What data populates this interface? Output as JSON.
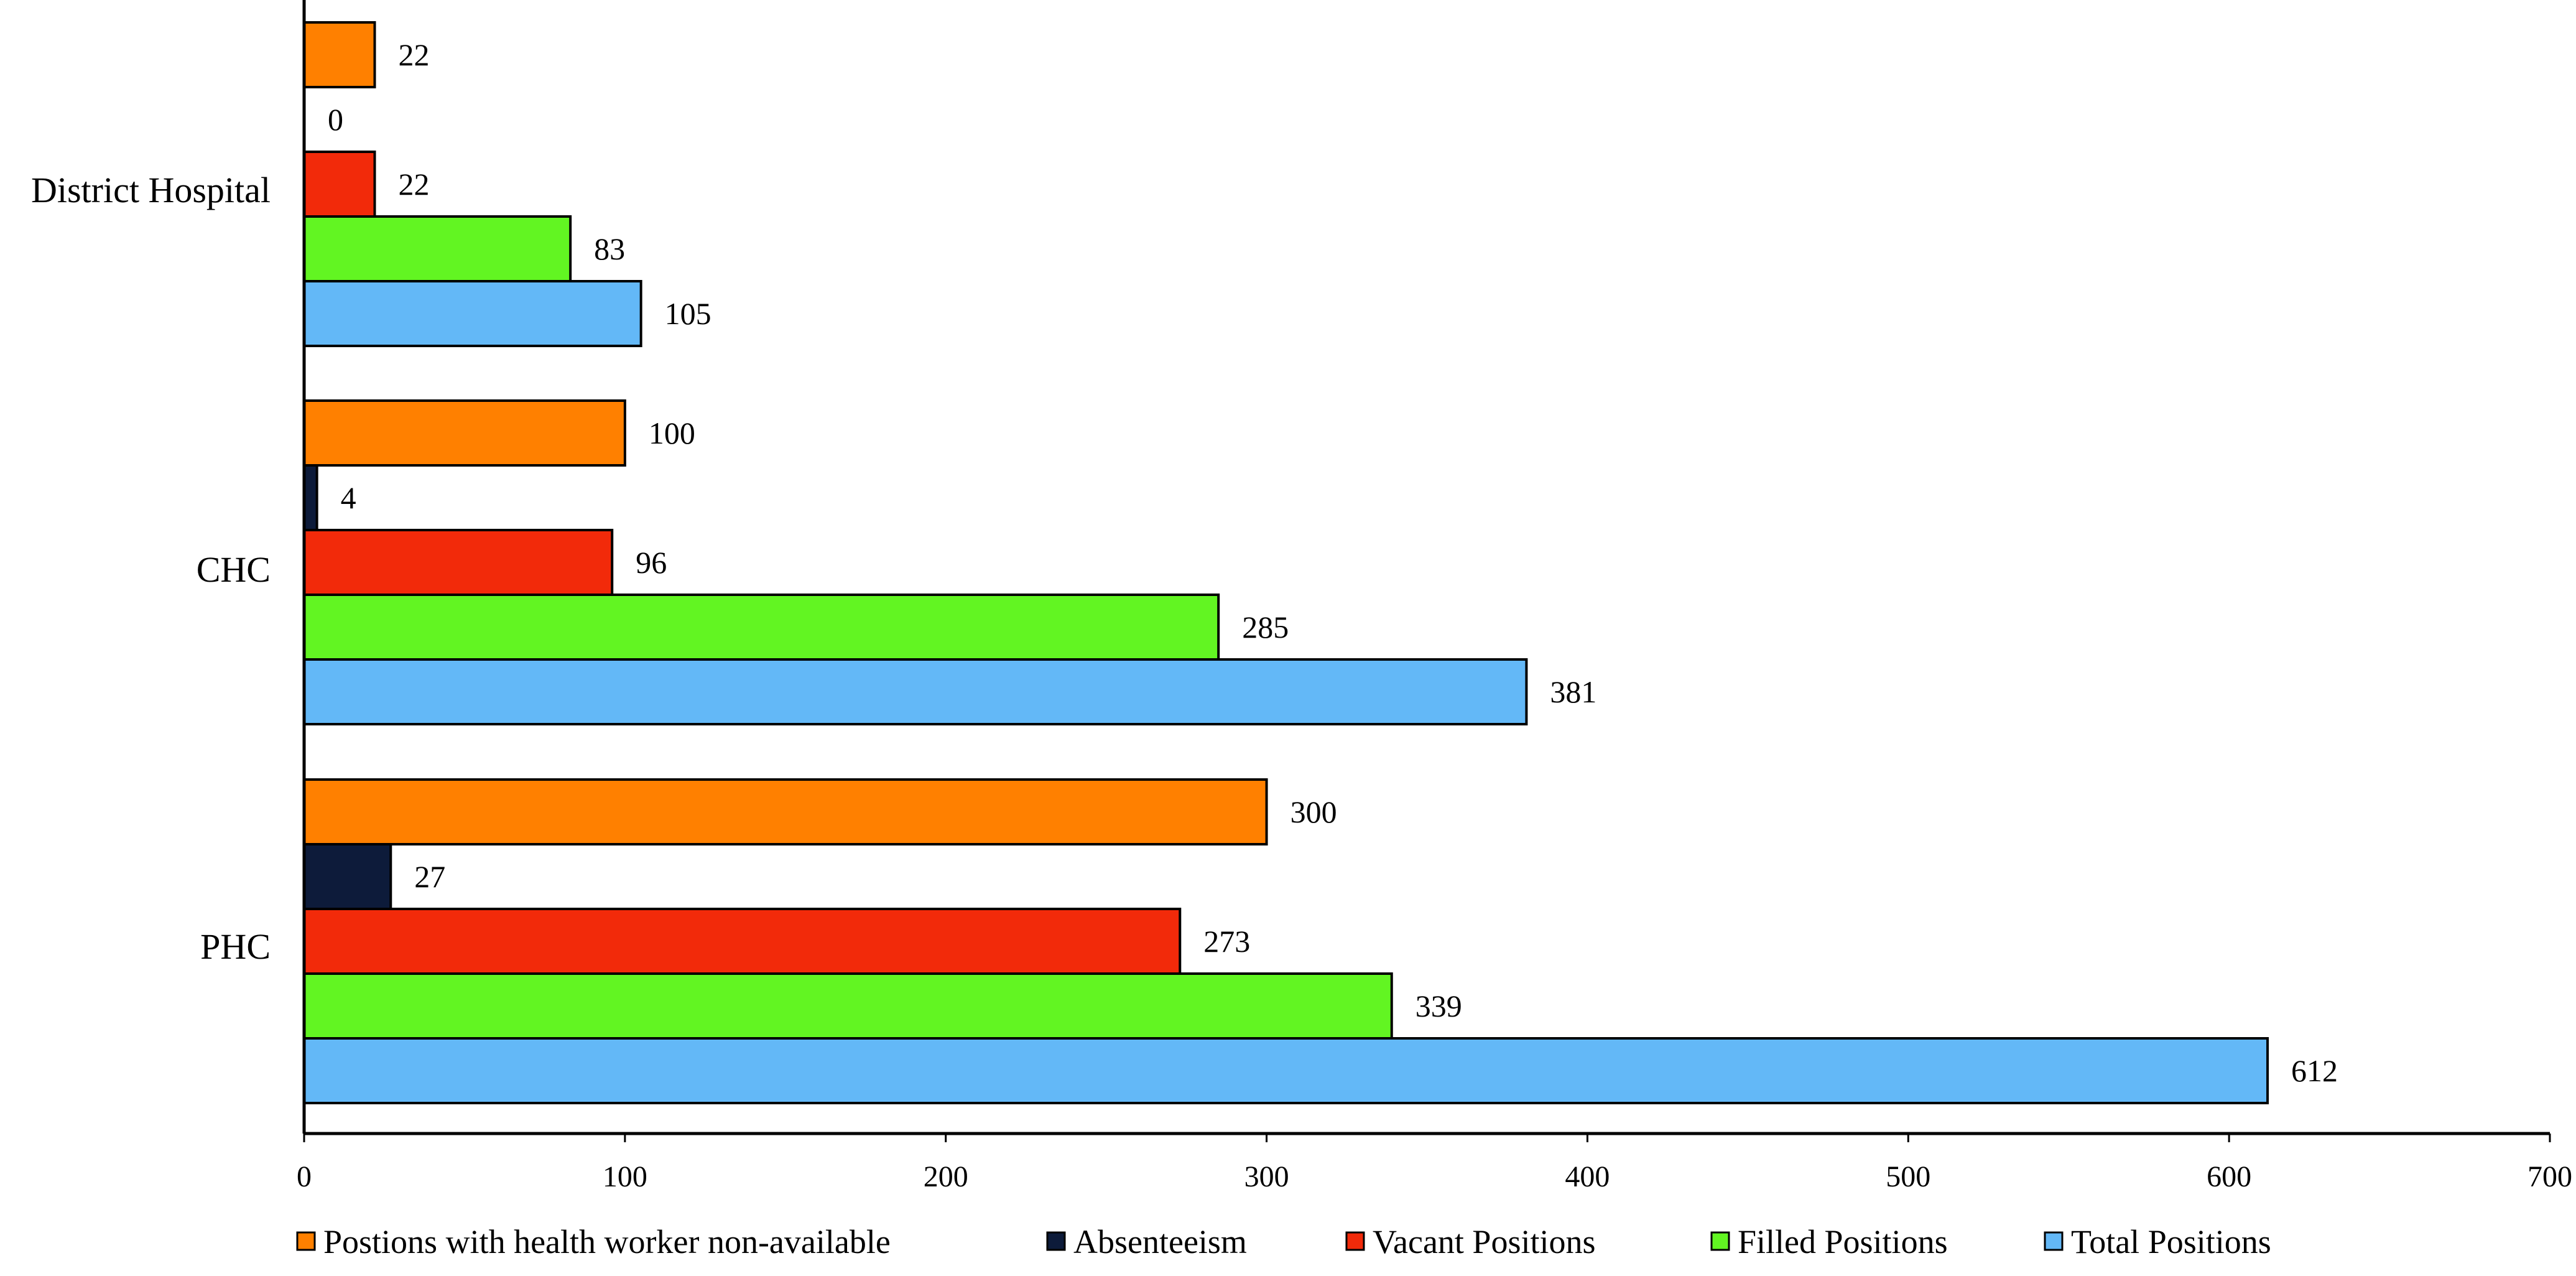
{
  "chart_data": {
    "type": "bar",
    "orientation": "horizontal",
    "categories": [
      "District Hospital",
      "CHC",
      "PHC"
    ],
    "series": [
      {
        "name": "Postions with health worker non-available",
        "color": "#FF8000",
        "values": [
          22,
          100,
          300
        ]
      },
      {
        "name": "Absenteeism",
        "color": "#0D1B3A",
        "values": [
          0,
          4,
          27
        ]
      },
      {
        "name": "Vacant Positions",
        "color": "#F22A0A",
        "values": [
          22,
          96,
          273
        ]
      },
      {
        "name": "Filled Positions",
        "color": "#62F522",
        "values": [
          83,
          285,
          339
        ]
      },
      {
        "name": "Total Positions",
        "color": "#63B8F7",
        "values": [
          105,
          381,
          612
        ]
      }
    ],
    "xlim": [
      0,
      700
    ],
    "xticks": [
      0,
      100,
      200,
      300,
      400,
      500,
      600,
      700
    ],
    "xlabel": "",
    "ylabel": "",
    "title": "",
    "grid": false,
    "legend_position": "bottom",
    "data_labels": true
  }
}
